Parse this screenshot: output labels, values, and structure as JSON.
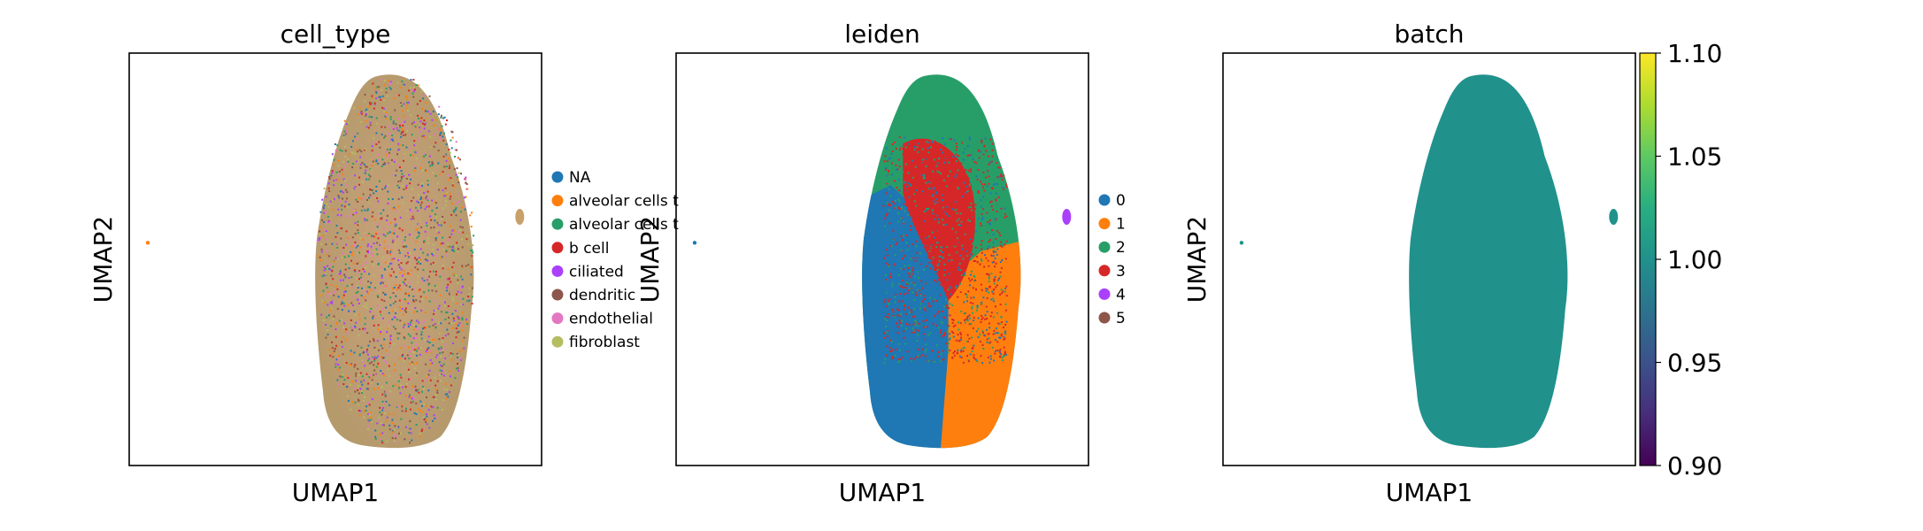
{
  "chart_data": [
    {
      "type": "scatter",
      "title": "cell_type",
      "xlabel": "UMAP1",
      "ylabel": "UMAP2",
      "legend_placement": "right",
      "series": [
        {
          "name": "NA",
          "color": "#1f77b4"
        },
        {
          "name": "alveolar cells t",
          "color": "#ff7f0e"
        },
        {
          "name": "alveolar cells t",
          "color": "#279e68"
        },
        {
          "name": "b cell",
          "color": "#d62728"
        },
        {
          "name": "ciliated",
          "color": "#aa40fc"
        },
        {
          "name": "dendritic",
          "color": "#8c564b"
        },
        {
          "name": "endothelial",
          "color": "#e377c2"
        },
        {
          "name": "fibroblast",
          "color": "#b5bd61"
        }
      ]
    },
    {
      "type": "scatter",
      "title": "leiden",
      "xlabel": "UMAP1",
      "ylabel": "UMAP2",
      "legend_placement": "right",
      "series": [
        {
          "name": "0",
          "color": "#1f77b4"
        },
        {
          "name": "1",
          "color": "#ff7f0e"
        },
        {
          "name": "2",
          "color": "#279e68"
        },
        {
          "name": "3",
          "color": "#d62728"
        },
        {
          "name": "4",
          "color": "#aa40fc"
        },
        {
          "name": "5",
          "color": "#8c564b"
        }
      ]
    },
    {
      "type": "scatter",
      "title": "batch",
      "xlabel": "UMAP1",
      "ylabel": "UMAP2",
      "point_color": "#21918c",
      "colorbar": {
        "colormap": "viridis",
        "range": [
          0.9,
          1.1
        ],
        "ticks": [
          "0.90",
          "0.95",
          "1.00",
          "1.05",
          "1.10"
        ]
      }
    }
  ]
}
